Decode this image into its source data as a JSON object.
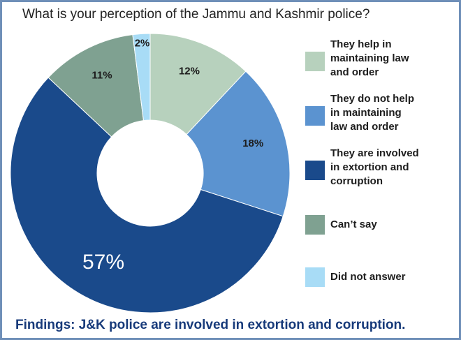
{
  "chart_data": {
    "type": "donut",
    "title": "What is your perception of the Jammu and Kashmir police?",
    "categories": [
      "They help in maintaining law and order",
      "They do not help in maintaining law and order",
      "They are involved in extortion and corruption",
      "Can’t say",
      "Did not answer"
    ],
    "values": [
      12,
      18,
      57,
      11,
      2
    ],
    "labels": [
      "12%",
      "18%",
      "57%",
      "11%",
      "2%"
    ],
    "colors": [
      "#b7d1bd",
      "#5b93d0",
      "#1a4a8b",
      "#7fa191",
      "#a8dcf6"
    ],
    "legend_position": "right"
  },
  "legend": [
    {
      "lines": [
        "They help in",
        "maintaining law",
        "and order"
      ]
    },
    {
      "lines": [
        "They do not help",
        "in maintaining",
        "law and order"
      ]
    },
    {
      "lines": [
        "They are involved",
        "in extortion and",
        "corruption"
      ]
    },
    {
      "lines": [
        "Can’t say"
      ]
    },
    {
      "lines": [
        "Did not answer"
      ]
    }
  ],
  "findings": "Findings: J&K police are involved in extortion and corruption."
}
